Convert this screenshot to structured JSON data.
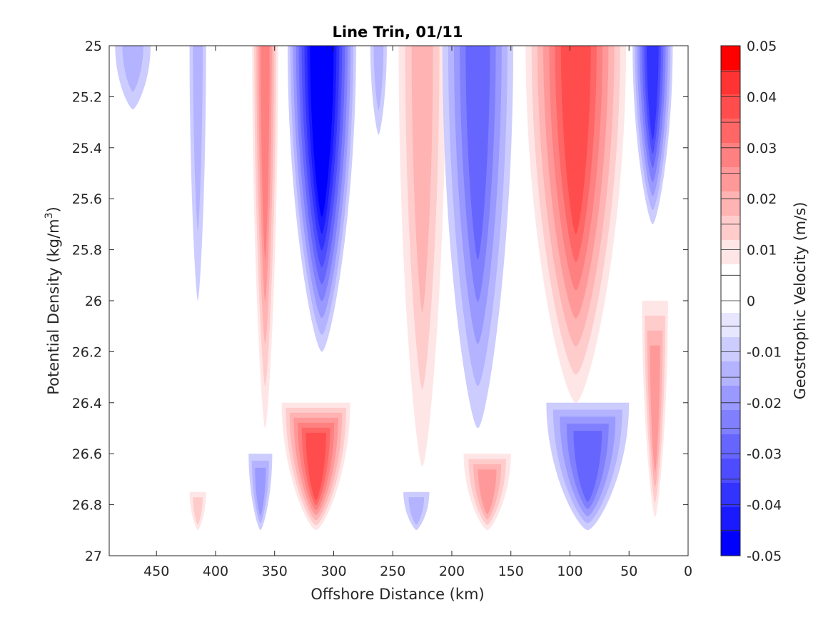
{
  "chart_data": {
    "type": "heatmap",
    "subtype": "filled-contour",
    "title": "Line Trin, 01/11",
    "xlabel": "Offshore Distance (km)",
    "ylabel_main": "Potential Density (kg/m",
    "ylabel_sup": "3",
    "ylabel_end": ")",
    "x_range": [
      490,
      0
    ],
    "x_reversed": true,
    "y_range": [
      25,
      27
    ],
    "y_reversed": true,
    "x_ticks": [
      450,
      400,
      350,
      300,
      250,
      200,
      150,
      100,
      50,
      0
    ],
    "x_tick_labels": [
      "450",
      "400",
      "350",
      "300",
      "250",
      "200",
      "150",
      "100",
      "50",
      "0"
    ],
    "y_ticks": [
      25,
      25.2,
      25.4,
      25.6,
      25.8,
      26,
      26.2,
      26.4,
      26.6,
      26.8,
      27
    ],
    "y_tick_labels": [
      "25",
      "25.2",
      "25.4",
      "25.6",
      "25.8",
      "26",
      "26.2",
      "26.4",
      "26.6",
      "26.8",
      "27"
    ],
    "colorbar": {
      "label": "Geostrophic Velocity (m/s)",
      "range": [
        -0.05,
        0.05
      ],
      "levels": [
        -0.05,
        -0.045,
        -0.04,
        -0.035,
        -0.03,
        -0.025,
        -0.02,
        -0.015,
        -0.01,
        -0.005,
        0,
        0.005,
        0.01,
        0.015,
        0.02,
        0.025,
        0.03,
        0.035,
        0.04,
        0.045,
        0.05
      ],
      "tick_values": [
        0.05,
        0.04,
        0.03,
        0.02,
        0.01,
        0,
        -0.01,
        -0.02,
        -0.03,
        -0.04,
        -0.05
      ],
      "tick_labels": [
        "0.05",
        "0.04",
        "0.03",
        "0.02",
        "0.01",
        "0",
        "-0.01",
        "-0.02",
        "-0.03",
        "-0.04",
        "-0.05"
      ],
      "colors": [
        "#0000ff",
        "#1a1aff",
        "#3333ff",
        "#4d4dff",
        "#6666ff",
        "#8080ff",
        "#9999ff",
        "#b3b3ff",
        "#ccccff",
        "#e6e6ff",
        "#ffffff",
        "#ffffff",
        "#ffe6e6",
        "#ffcccc",
        "#ffb3b3",
        "#ff9999",
        "#ff8080",
        "#ff6666",
        "#ff4d4d",
        "#ff3333",
        "#ff0000"
      ]
    },
    "data_coverage": {
      "x_min": 15,
      "y_bottom": 26.9
    },
    "features": [
      {
        "id": "neg-core-310",
        "x_center": 310,
        "y_top": 25.0,
        "y_bottom": 26.2,
        "width_km": 58,
        "min_velocity": -0.05
      },
      {
        "id": "pos-bottom-315",
        "x_center": 315,
        "y_top": 26.4,
        "y_bottom": 26.9,
        "width_km": 58,
        "max_velocity": 0.035
      },
      {
        "id": "pos-strip-360",
        "x_center": 358,
        "y_top": 25.0,
        "y_bottom": 26.5,
        "width_km": 22,
        "max_velocity": 0.025
      },
      {
        "id": "neg-faint-415",
        "x_center": 415,
        "y_top": 25.0,
        "y_bottom": 26.0,
        "width_km": 14,
        "min_velocity": -0.01
      },
      {
        "id": "neg-corner-470",
        "x_center": 470,
        "y_top": 25.0,
        "y_bottom": 25.25,
        "width_km": 30,
        "min_velocity": -0.01
      },
      {
        "id": "pos-tilt-225",
        "x_center": 225,
        "y_top": 25.0,
        "y_bottom": 26.65,
        "width_km": 40,
        "max_velocity": 0.015
      },
      {
        "id": "neg-tilt-175",
        "x_center": 178,
        "y_top": 25.0,
        "y_bottom": 26.5,
        "width_km": 60,
        "min_velocity": -0.025
      },
      {
        "id": "neg-faint-260",
        "x_center": 262,
        "y_top": 25.0,
        "y_bottom": 25.35,
        "width_km": 14,
        "min_velocity": -0.01
      },
      {
        "id": "pos-core-95",
        "x_center": 95,
        "y_top": 25.0,
        "y_bottom": 26.4,
        "width_km": 85,
        "max_velocity": 0.035
      },
      {
        "id": "neg-edge-30",
        "x_center": 30,
        "y_top": 25.0,
        "y_bottom": 25.7,
        "width_km": 34,
        "min_velocity": -0.035
      },
      {
        "id": "pos-edge-25",
        "x_center": 28,
        "y_top": 26.0,
        "y_bottom": 26.85,
        "width_km": 22,
        "max_velocity": 0.02
      },
      {
        "id": "neg-bottom-85",
        "x_center": 85,
        "y_top": 26.4,
        "y_bottom": 26.9,
        "width_km": 70,
        "min_velocity": -0.025
      },
      {
        "id": "pos-bottom-170",
        "x_center": 170,
        "y_top": 26.6,
        "y_bottom": 26.9,
        "width_km": 40,
        "max_velocity": 0.02
      },
      {
        "id": "neg-bottom-360",
        "x_center": 362,
        "y_top": 26.6,
        "y_bottom": 26.9,
        "width_km": 20,
        "min_velocity": -0.015
      },
      {
        "id": "neg-bottom-230",
        "x_center": 230,
        "y_top": 26.75,
        "y_bottom": 26.9,
        "width_km": 22,
        "min_velocity": -0.01
      },
      {
        "id": "pos-bottom-410",
        "x_center": 415,
        "y_top": 26.75,
        "y_bottom": 26.9,
        "width_km": 14,
        "max_velocity": 0.01
      }
    ]
  }
}
